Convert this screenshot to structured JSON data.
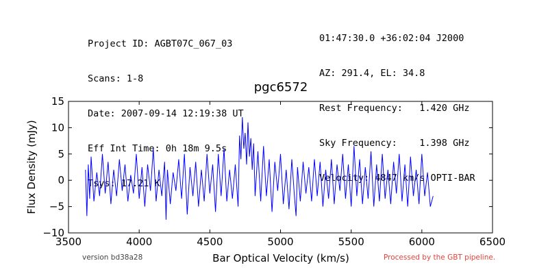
{
  "header": {
    "left_lines": [
      "Project ID: AGBT07C_067_03",
      "Scans: 1-8",
      "Date: 2007-09-14 12:19:38 UT",
      "Eff Int Time: 0h 18m 9.5s",
      "Tsys: 17.21 K"
    ],
    "right_lines": [
      "01:47:30.0 +36:02:04 J2000",
      "AZ: 291.4, EL: 34.8",
      "Rest Frequency:   1.420 GHz",
      "Sky Frequency:    1.398 GHz",
      "Velocity: 4847 km/s OPTI-BAR"
    ]
  },
  "footer": {
    "version": "version bd38a28",
    "pipeline": "Processed by the GBT pipeline."
  },
  "colors": {
    "line": "#0000ff",
    "axes": "#000000",
    "pipeline_text": "#e8413a"
  },
  "chart_data": {
    "type": "line",
    "title": "pgc6572",
    "xlabel": "Bar Optical Velocity (km/s)",
    "ylabel": "Flux Density (mJy)",
    "xlim": [
      3500,
      6500
    ],
    "ylim": [
      -10,
      15
    ],
    "xticks": [
      3500,
      4000,
      4500,
      5000,
      5500,
      6000,
      6500
    ],
    "yticks": [
      -10,
      -5,
      0,
      5,
      10,
      15
    ],
    "grid": false,
    "series": [
      {
        "x": [
          3620,
          3630,
          3640,
          3650,
          3660,
          3680,
          3700,
          3720,
          3740,
          3760,
          3780,
          3800,
          3820,
          3840,
          3860,
          3880,
          3900,
          3920,
          3940,
          3960,
          3980,
          4000,
          4020,
          4040,
          4060,
          4080,
          4100,
          4120,
          4140,
          4160,
          4180,
          4190,
          4200,
          4220,
          4240,
          4260,
          4280,
          4300,
          4320,
          4340,
          4360,
          4380,
          4400,
          4420,
          4440,
          4460,
          4480,
          4500,
          4520,
          4540,
          4560,
          4580,
          4600,
          4620,
          4640,
          4660,
          4680,
          4700,
          4710,
          4720,
          4730,
          4740,
          4750,
          4760,
          4770,
          4780,
          4790,
          4800,
          4810,
          4820,
          4840,
          4860,
          4880,
          4900,
          4920,
          4940,
          4960,
          4980,
          5000,
          5020,
          5040,
          5060,
          5080,
          5100,
          5110,
          5120,
          5140,
          5160,
          5180,
          5200,
          5220,
          5240,
          5260,
          5280,
          5300,
          5320,
          5340,
          5360,
          5380,
          5400,
          5420,
          5440,
          5460,
          5480,
          5500,
          5520,
          5540,
          5560,
          5580,
          5600,
          5620,
          5640,
          5660,
          5680,
          5700,
          5720,
          5740,
          5760,
          5780,
          5800,
          5820,
          5840,
          5860,
          5880,
          5900,
          5920,
          5940,
          5960,
          5980,
          6000,
          6020,
          6040,
          6060,
          6080
        ],
        "y": [
          2.0,
          -6.8,
          3.0,
          -3.5,
          4.5,
          -4.0,
          1.5,
          -3.0,
          5.0,
          -2.5,
          3.5,
          -4.5,
          2.0,
          -3.0,
          4.0,
          -2.0,
          3.0,
          -4.0,
          1.0,
          -2.5,
          5.0,
          -3.5,
          2.5,
          -5.0,
          3.0,
          -2.0,
          6.0,
          -4.0,
          2.0,
          -3.0,
          3.5,
          -7.5,
          2.0,
          -4.5,
          1.5,
          -2.0,
          4.0,
          -3.5,
          5.0,
          -6.5,
          2.5,
          -3.0,
          3.5,
          -5.0,
          2.0,
          -4.0,
          5.0,
          -2.5,
          3.0,
          -6.0,
          5.0,
          -3.0,
          6.0,
          -4.0,
          2.0,
          -3.5,
          3.0,
          -5.0,
          8.5,
          4.0,
          12.0,
          6.0,
          9.0,
          3.0,
          11.0,
          4.5,
          8.0,
          2.0,
          7.0,
          -3.0,
          5.5,
          -4.0,
          6.5,
          -3.0,
          4.0,
          -6.0,
          3.5,
          -2.0,
          5.0,
          -4.5,
          2.0,
          -5.5,
          4.0,
          -3.5,
          -6.8,
          2.5,
          -4.0,
          3.5,
          -2.5,
          2.5,
          -4.0,
          4.0,
          -3.0,
          3.5,
          -5.0,
          2.0,
          -3.5,
          4.0,
          -4.5,
          3.0,
          -2.0,
          5.0,
          -3.5,
          3.0,
          -5.0,
          6.5,
          -3.0,
          4.0,
          -4.5,
          2.5,
          -3.5,
          5.5,
          -5.0,
          3.0,
          -4.0,
          5.0,
          -3.5,
          2.0,
          -4.5,
          3.5,
          -2.5,
          5.0,
          -4.0,
          3.0,
          -5.0,
          4.5,
          -3.0,
          2.0,
          -4.5,
          5.0,
          -3.0,
          1.5,
          -5.0,
          -3.0
        ]
      }
    ]
  }
}
